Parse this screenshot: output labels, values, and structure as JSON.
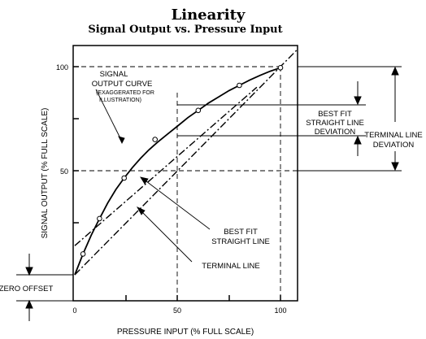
{
  "title": "Linearity",
  "subtitle": "Signal Output vs. Pressure Input",
  "axes": {
    "xlabel": "PRESSURE INPUT (% FULL SCALE)",
    "ylabel": "SIGNAL OUTPUT (% FULL SCALE)",
    "x_ticks": [
      "0",
      "50",
      "100"
    ],
    "y_ticks": [
      "50",
      "100"
    ]
  },
  "annotations": {
    "curve_line1": "SIGNAL",
    "curve_line2": "OUTPUT CURVE",
    "curve_note1": "(EXAGGERATED FOR",
    "curve_note2": "ILLUSTRATION)",
    "bfsl_dev_line1": "BEST FIT",
    "bfsl_dev_line2": "STRAIGHT LINE",
    "bfsl_dev_line3": "DEVIATION",
    "term_dev_line1": "TERMINAL LINE",
    "term_dev_line2": "DEVIATION",
    "bfsl_line1": "BEST FIT",
    "bfsl_line2": "STRAIGHT LINE",
    "terminal_line": "TERMINAL LINE",
    "zero_offset": "ZERO OFFSET"
  },
  "chart_data": {
    "type": "line",
    "xlim": [
      0,
      110
    ],
    "ylim": [
      -12,
      100
    ],
    "series": [
      {
        "key": "curve",
        "style": "solid",
        "x": [
          0,
          4,
          8,
          12,
          16,
          20,
          24,
          28,
          32,
          36,
          40,
          45,
          50,
          55,
          60,
          65,
          70,
          75,
          80,
          85,
          90,
          95,
          100
        ],
        "y": [
          0,
          10,
          19,
          27,
          34.5,
          41,
          46.5,
          51.5,
          56,
          60,
          63.5,
          67.5,
          71.5,
          75.5,
          79,
          82.5,
          85.5,
          88.5,
          91,
          93.5,
          95.8,
          97.8,
          99.5
        ]
      },
      {
        "key": "best_fit",
        "style": "dash-dot",
        "x": [
          0,
          100
        ],
        "y": [
          14,
          100
        ]
      },
      {
        "key": "terminal",
        "style": "dash-dot",
        "x": [
          0,
          100
        ],
        "y": [
          0,
          100
        ]
      }
    ],
    "markers": {
      "x": [
        4,
        12,
        24,
        39,
        60,
        80,
        100
      ],
      "y": [
        10,
        27,
        46.5,
        65,
        79,
        91,
        99.5
      ]
    }
  }
}
